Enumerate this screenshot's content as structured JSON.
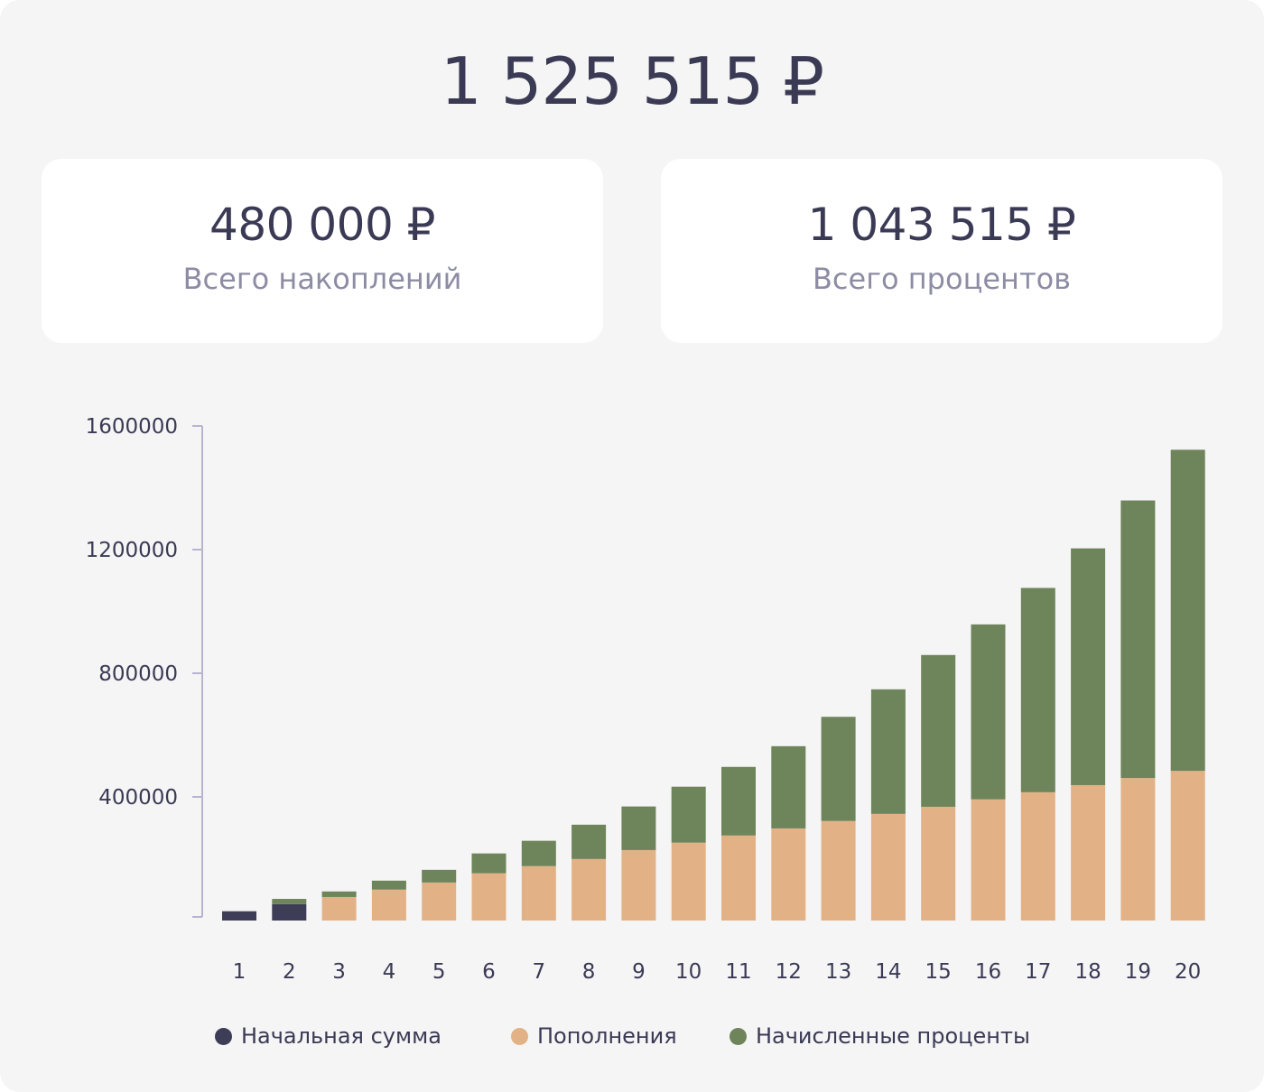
{
  "header": {
    "total": "1 525 515 ₽"
  },
  "cards": [
    {
      "value": "480 000 ₽",
      "label": "Всего накоплений"
    },
    {
      "value": "1 043 515 ₽",
      "label": "Всего процентов"
    }
  ],
  "legend": [
    {
      "label": "Начальная сумма",
      "color": "#3d3d57"
    },
    {
      "label": "Пополнения",
      "color": "#e2b286"
    },
    {
      "label": "Начисленные проценты",
      "color": "#6e845b"
    }
  ],
  "chart_data": {
    "type": "bar",
    "stacked": true,
    "categories": [
      "1",
      "2",
      "3",
      "4",
      "5",
      "6",
      "7",
      "8",
      "9",
      "10",
      "11",
      "12",
      "13",
      "14",
      "15",
      "16",
      "17",
      "18",
      "19",
      "20"
    ],
    "ylim": [
      0,
      1600000
    ],
    "yticks": [
      "1600000",
      "1200000",
      "800000",
      "400000"
    ],
    "ytick_values": [
      1600000,
      1200000,
      800000,
      400000
    ],
    "grid": false,
    "legend_position": "bottom",
    "series": [
      {
        "name": "Начальная сумма",
        "color": "#3d3d57",
        "values": [
          30000,
          53000,
          0,
          0,
          0,
          0,
          0,
          0,
          0,
          0,
          0,
          0,
          0,
          0,
          0,
          0,
          0,
          0,
          0,
          0
        ]
      },
      {
        "name": "Пополнения",
        "color": "#e2b286",
        "values": [
          0,
          0,
          76000,
          100000,
          123000,
          153000,
          176000,
          199000,
          228000,
          252000,
          275000,
          298000,
          322000,
          345000,
          368000,
          392000,
          415000,
          438000,
          461000,
          484000
        ]
      },
      {
        "name": "Начисленные проценты",
        "color": "#6e845b",
        "values": [
          0,
          17000,
          18000,
          29000,
          41000,
          64000,
          82000,
          111000,
          141000,
          181000,
          222000,
          266000,
          337000,
          403000,
          491000,
          566000,
          661000,
          766000,
          898000,
          1039000
        ]
      }
    ]
  }
}
